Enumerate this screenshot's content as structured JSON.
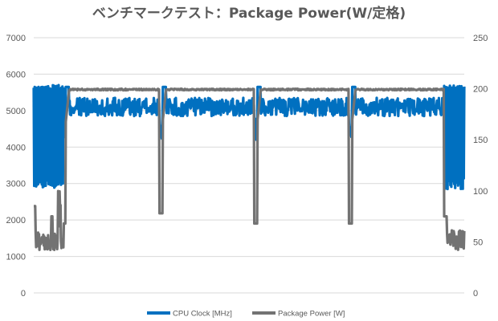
{
  "chart_data": {
    "type": "line",
    "title": "ベンチマークテスト：Package Power(W/定格)",
    "xlabel": "",
    "ylabel": "",
    "y_left": {
      "min": 0,
      "max": 7000,
      "ticks": [
        "0",
        "1000",
        "2000",
        "3000",
        "4000",
        "5000",
        "6000",
        "7000"
      ]
    },
    "y_right": {
      "min": 0,
      "max": 250,
      "ticks": [
        "0",
        "50",
        "100",
        "150",
        "200",
        "250"
      ]
    },
    "grid": true,
    "legend_position": "bottom",
    "x": {
      "min": 0,
      "max": 100
    },
    "segments": [
      {
        "start": 0,
        "end": 7
      },
      {
        "start": 7,
        "end": 29.5
      },
      {
        "start": 29.5,
        "end": 51.5
      },
      {
        "start": 51.5,
        "end": 73.5
      },
      {
        "start": 73.5,
        "end": 95.3
      },
      {
        "start": 95.3,
        "end": 100
      }
    ],
    "series": [
      {
        "name": "CPU Clock [MHz]",
        "axis": "left",
        "color": "#0070c0",
        "idle_band": [
          2850,
          5700
        ],
        "load_range": [
          4850,
          5350
        ],
        "load_mean": 5100,
        "dip_min": 4200
      },
      {
        "name": "Package Power [W]",
        "axis": "right",
        "color": "#737373",
        "idle_band": [
          42,
          62
        ],
        "idle_spikes": [
          85,
          75,
          65
        ],
        "load_value": 200,
        "dip_values": [
          68,
          78,
          68
        ]
      }
    ]
  }
}
